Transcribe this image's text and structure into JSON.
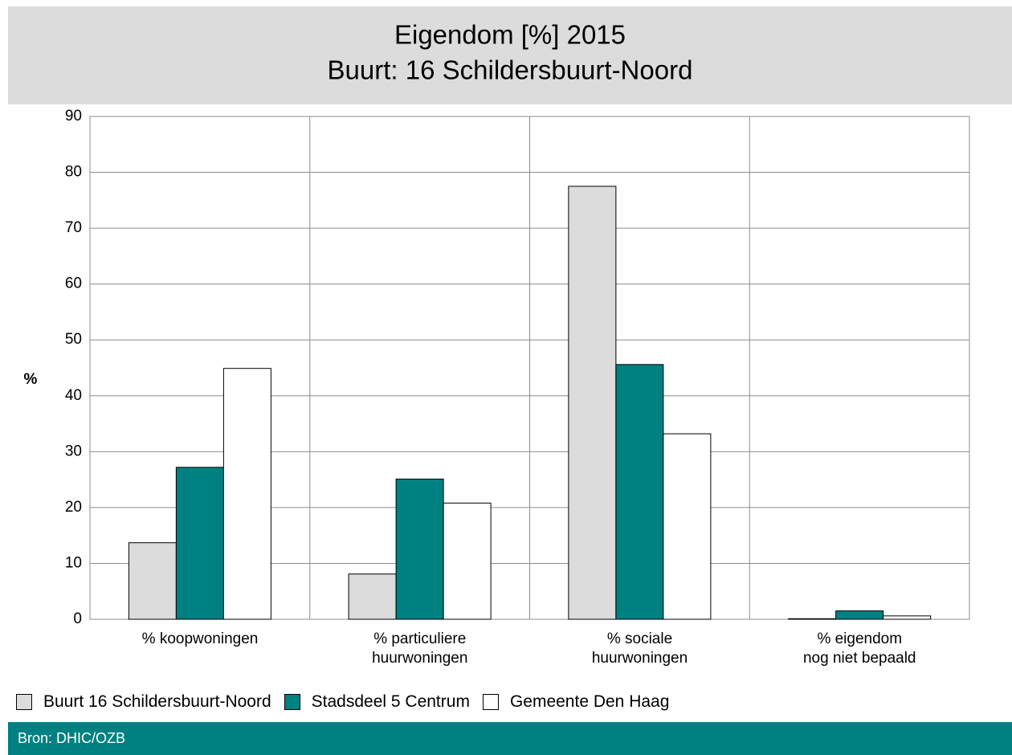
{
  "chart_data": {
    "type": "bar",
    "title": "Eigendom [%] 2015",
    "subtitle": "Buurt: 16 Schildersbuurt-Noord",
    "y_label": "%",
    "categories": [
      "% koopwoningen",
      "% particuliere\nhuurwoningen",
      "% sociale\nhuurwoningen",
      "% eigendom\nnog niet bepaald"
    ],
    "series": [
      {
        "name": "Buurt 16 Schildersbuurt-Noord",
        "color": "#dcdcdc",
        "values": [
          13.7,
          8.1,
          77.5,
          0.1
        ]
      },
      {
        "name": "Stadsdeel 5 Centrum",
        "color": "#008080",
        "values": [
          27.2,
          25.1,
          45.6,
          1.5
        ]
      },
      {
        "name": "Gemeente Den Haag",
        "color": "#ffffff",
        "values": [
          44.9,
          20.8,
          33.2,
          0.6
        ]
      }
    ],
    "ylim": [
      0,
      90
    ],
    "yticks": [
      0,
      10,
      20,
      30,
      40,
      50,
      60,
      70,
      80,
      90
    ],
    "grid": true,
    "source": "Bron: DHIC/OZB"
  }
}
